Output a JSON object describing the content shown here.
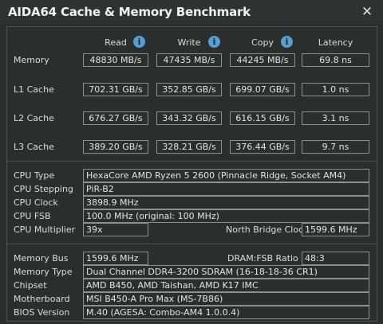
{
  "window": {
    "title": "AIDA64 Cache & Memory Benchmark",
    "close_glyph": "✕"
  },
  "columns": {
    "read": "Read",
    "write": "Write",
    "copy": "Copy",
    "latency": "Latency",
    "info_glyph": "i"
  },
  "rows": [
    {
      "label": "Memory",
      "read": "48830 MB/s",
      "write": "47435 MB/s",
      "copy": "44245 MB/s",
      "latency": "69.8 ns"
    },
    {
      "label": "L1 Cache",
      "read": "702.31 GB/s",
      "write": "352.85 GB/s",
      "copy": "699.07 GB/s",
      "latency": "1.0 ns"
    },
    {
      "label": "L2 Cache",
      "read": "676.27 GB/s",
      "write": "343.32 GB/s",
      "copy": "616.15 GB/s",
      "latency": "3.1 ns"
    },
    {
      "label": "L3 Cache",
      "read": "389.20 GB/s",
      "write": "328.21 GB/s",
      "copy": "376.44 GB/s",
      "latency": "9.7 ns"
    }
  ],
  "cpu": {
    "type_label": "CPU Type",
    "type_value": "HexaCore AMD Ryzen 5 2600  (Pinnacle Ridge, Socket AM4)",
    "stepping_label": "CPU Stepping",
    "stepping_value": "PiR-B2",
    "clock_label": "CPU Clock",
    "clock_value": "3898.9 MHz",
    "fsb_label": "CPU FSB",
    "fsb_value": "100.0 MHz  (original: 100 MHz)",
    "multiplier_label": "CPU Multiplier",
    "multiplier_value": "39x",
    "nb_clock_label": "North Bridge Clock",
    "nb_clock_value": "1599.6 MHz"
  },
  "memory": {
    "bus_label": "Memory Bus",
    "bus_value": "1599.6 MHz",
    "ratio_label": "DRAM:FSB Ratio",
    "ratio_value": "48:3",
    "type_label": "Memory Type",
    "type_value": "Dual Channel DDR4-3200 SDRAM  (16-18-18-36 CR1)",
    "chipset_label": "Chipset",
    "chipset_value": "AMD B450, AMD Taishan, AMD K17 IMC",
    "motherboard_label": "Motherboard",
    "motherboard_value": "MSI B450-A Pro Max (MS-7B86)",
    "bios_label": "BIOS Version",
    "bios_value": "M.40  (AGESA: Combo-AM4 1.0.0.4)"
  }
}
